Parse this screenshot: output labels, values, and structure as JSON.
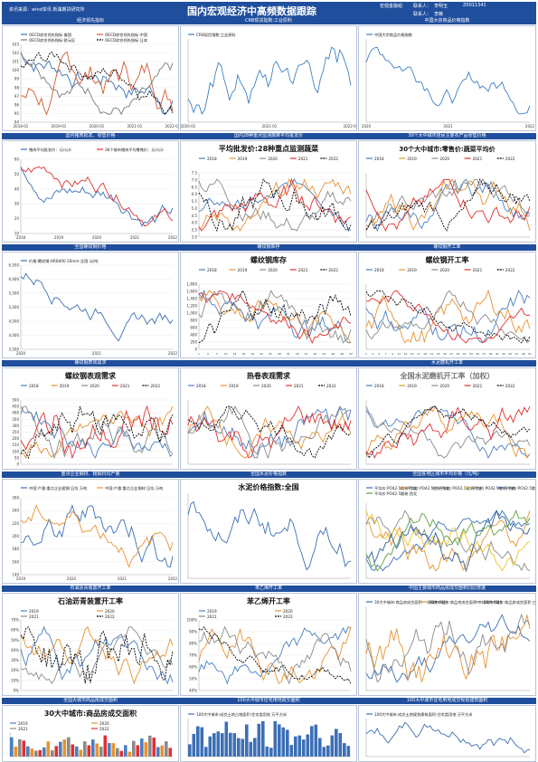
{
  "header": {
    "title": "国内宏观经济中高频数据跟踪",
    "source": "资讯来源：wind资讯 新湖期货研究所",
    "dept": "宏观金融组",
    "contact_label": "联系人：",
    "contact": "李明玉",
    "code": "Z0011341",
    "contact2_label": "联系人：",
    "contact2": "李薇"
  },
  "colors": {
    "band": "#1f4e9c",
    "y2018": "#4a7fc1",
    "y2019": "#e8922f",
    "y2020": "#8a8a8a",
    "y2021": "#e03030",
    "y2022": "#000000"
  },
  "rows": [
    {
      "titles": [
        "经济领先指标",
        "CRB现货指数:工业原料",
        "中国大宗商品价格指数"
      ]
    },
    {
      "titles": [
        "国内猪肉批发、零售价格",
        "国内28种重点监测蔬菜平均批发价",
        "30个大中城市居民主要农产品零售价格"
      ]
    },
    {
      "titles": [
        "全国螺纹钢价格",
        "螺纹钢库存",
        "螺纹钢开工率"
      ]
    },
    {
      "titles": [
        "螺纹钢表观需求",
        "",
        "水泥磨机开工率"
      ]
    },
    {
      "titles": [
        "重点企业钢材、粗钢日均产量",
        "全国水泥价格指数",
        "全国各地区城市平均价格（元/吨）"
      ]
    },
    {
      "titles": [
        "石油沥青装置开工率",
        "苯乙烯开工率",
        "中国主要城市商品房成交面积同比增速"
      ]
    },
    {
      "titles": [
        "全国大城市商品房成交面积",
        "100大中城市住宅用地成交面积",
        "100大中城市住宅用地成交规划建筑面积"
      ]
    }
  ],
  "charts": [
    {
      "id": "leading",
      "type": "line",
      "legend": [
        "OECD综合领先指标:美国",
        "OECD综合领先指标:中国",
        "OECD综合领先指标:欧元区",
        "OECD综合领先指标:日本"
      ],
      "yticks": [
        "103",
        "102",
        "101",
        "100",
        "99",
        "98",
        "97",
        "96",
        "95",
        "94"
      ],
      "xticks": [
        "2018-01",
        "2019-01",
        "2020-01",
        "2021-01",
        "2022-01"
      ],
      "series_colors": [
        "#3c6fb5",
        "#d9572b",
        "#7a7a7a",
        "#000000"
      ]
    },
    {
      "id": "crb",
      "type": "line",
      "legend": [
        "CRB现货指数:工业原料"
      ],
      "yticks": [],
      "xticks": [
        "2020-01",
        "2021-01",
        "2022-01"
      ],
      "series_colors": [
        "#3c80c0"
      ]
    },
    {
      "id": "cci",
      "type": "line",
      "legend": [
        "中国大宗商品价格指数"
      ],
      "yticks": [],
      "xticks": [
        "2020",
        "2021",
        "2022"
      ],
      "series_colors": [
        "#3c80c0"
      ]
    },
    {
      "id": "pork",
      "type": "line",
      "legend": [
        "猪肉平均批发价：元/公斤",
        "36个城市猪肉平均零售价：元/公斤"
      ],
      "yticks": [
        "60",
        "50",
        "40",
        "30",
        "20",
        "10"
      ],
      "xticks": [
        "2018",
        "2019",
        "2020",
        "2021",
        "2022"
      ],
      "series_colors": [
        "#3c6fb5",
        "#e03030"
      ]
    },
    {
      "id": "veg",
      "type": "line",
      "title": "平均批发价:28种重点监测蔬菜",
      "legend": [
        "2018",
        "2019",
        "2020",
        "2021",
        "2022"
      ],
      "yticks": [
        "7.5",
        "7.0",
        "6.5",
        "6.0",
        "5.5",
        "5.0",
        "4.5",
        "4.0",
        "3.5",
        "3.0"
      ],
      "xticks": [],
      "series_colors": [
        "#4a7fc1",
        "#e8922f",
        "#8a8a8a",
        "#e03030",
        "#000000"
      ]
    },
    {
      "id": "veg30",
      "type": "line",
      "title": "30个大中城市:零售价:蔬菜平均价",
      "legend": [
        "2018",
        "2019",
        "2020",
        "2021",
        "2022"
      ],
      "yticks": [],
      "xticks": [],
      "series_colors": [
        "#4a7fc1",
        "#e8922f",
        "#8a8a8a",
        "#e03030",
        "#000000"
      ]
    },
    {
      "id": "rebar_price",
      "type": "line",
      "legend": [
        "价格:螺纹钢:HRB400 20mm:全国  元/吨"
      ],
      "yticks": [
        "6,500",
        "6,000",
        "5,500",
        "5,000",
        "4,500",
        "4,000",
        "3,500"
      ],
      "xticks": [
        "2020",
        "2021",
        "2022"
      ],
      "series_colors": [
        "#3c6fb5"
      ]
    },
    {
      "id": "rebar_inv",
      "type": "line",
      "title": "螺纹钢库存",
      "legend": [
        "2018",
        "2019",
        "2020",
        "2021",
        "2022"
      ],
      "yticks": [
        "1,800",
        "1,600",
        "1,400",
        "1,200",
        "1,000",
        "800",
        "600",
        "400",
        "200",
        "0"
      ],
      "xticks": [
        "1",
        "4",
        "7",
        "10",
        "13",
        "16",
        "19",
        "22",
        "25",
        "28",
        "31",
        "34",
        "37",
        "40",
        "43",
        "46",
        "49",
        "52"
      ],
      "series_colors": [
        "#4a7fc1",
        "#e8922f",
        "#8a8a8a",
        "#e03030",
        "#000000"
      ]
    },
    {
      "id": "rebar_op",
      "type": "line",
      "title": "螺纹钢开工率",
      "legend": [
        "2018",
        "2019",
        "2020",
        "2021",
        "2022"
      ],
      "yticks": [],
      "xticks": [
        "1",
        "3",
        "5",
        "7",
        "9",
        "11",
        "13",
        "15",
        "17",
        "19",
        "21",
        "23",
        "25",
        "27",
        "29",
        "31",
        "33",
        "35",
        "37",
        "39",
        "41",
        "43",
        "45",
        "47",
        "49",
        "51"
      ],
      "series_colors": [
        "#4a7fc1",
        "#e8922f",
        "#8a8a8a",
        "#e03030",
        "#000000"
      ]
    },
    {
      "id": "rebar_dem",
      "type": "line",
      "title": "螺纹钢表观需求",
      "legend": [
        "2018",
        "2019",
        "2020",
        "2021",
        "2022"
      ],
      "yticks": [
        "500",
        "450",
        "400",
        "350",
        "300",
        "250",
        "200",
        "150",
        "100",
        "50",
        "0"
      ],
      "xticks": [],
      "series_colors": [
        "#4a7fc1",
        "#e8922f",
        "#8a8a8a",
        "#e03030",
        "#000000"
      ]
    },
    {
      "id": "hrc_dem",
      "type": "line",
      "title": "热卷表观需求",
      "legend": [
        "2018",
        "2019",
        "2020",
        "2021",
        "2022"
      ],
      "yticks": [],
      "xticks": [],
      "series_colors": [
        "#4a7fc1",
        "#e8922f",
        "#8a8a8a",
        "#e03030",
        "#000000"
      ]
    },
    {
      "id": "cement_op",
      "type": "line",
      "title": "全国水泥磨机开工率（加权）",
      "legend": [
        "2018",
        "2019",
        "2020",
        "2021",
        "2022"
      ],
      "yticks": [],
      "xticks": [],
      "series_colors": [
        "#4a7fc1",
        "#e8922f",
        "#8a8a8a",
        "#e03030",
        "#000000"
      ]
    },
    {
      "id": "steel_out",
      "type": "line",
      "legend": [
        "中国:产量:重点企业粗钢:日均  万吨",
        "中国:产量:重点企业钢材:日均  万吨"
      ],
      "yticks": [
        "260",
        "240",
        "220",
        "200",
        "180",
        "160",
        "140"
      ],
      "xticks": [
        "2019",
        "2020",
        "2021",
        "2022"
      ],
      "series_colors": [
        "#3c6fb5",
        "#e8922f"
      ]
    },
    {
      "id": "cement_price",
      "type": "line",
      "title": "水泥价格指数:全国",
      "legend": [],
      "yticks": [],
      "xticks": [],
      "series_colors": [
        "#3c6fb5"
      ]
    },
    {
      "id": "regional",
      "type": "line",
      "legend": [
        "平均价:PO42.5散装:华北",
        "平均价:PO42.5散装:东北",
        "平均价:PO42.5散装:华东",
        "平均价:PO42.5散装:中南",
        "平均价:PO42.5散装:西南",
        "平均价:PO42.5散装:西北"
      ],
      "yticks": [],
      "xticks": [],
      "series_colors": [
        "#3c6fb5",
        "#e8922f",
        "#8a8a8a",
        "#e8c22f",
        "#2b5fa0",
        "#60a040"
      ]
    },
    {
      "id": "asphalt",
      "type": "line",
      "title": "石油沥青装置开工率",
      "legend": [
        "2019",
        "2020",
        "2021",
        "2022"
      ],
      "yticks": [
        "70%",
        "60%",
        "50%",
        "40%",
        "30%",
        "20%",
        "10%",
        "0%"
      ],
      "xticks": [],
      "series_colors": [
        "#4a7fc1",
        "#e8922f",
        "#8a8a8a",
        "#000000"
      ]
    },
    {
      "id": "styrene",
      "type": "line",
      "title": "苯乙烯开工率",
      "legend": [
        "2019",
        "2020",
        "2021",
        "2022"
      ],
      "yticks": [
        "100%",
        "90%",
        "80%",
        "70%",
        "60%",
        "50%",
        "40%"
      ],
      "xticks": [],
      "series_colors": [
        "#4a7fc1",
        "#e8922f",
        "#8a8a8a",
        "#000000"
      ]
    },
    {
      "id": "housing_yoy",
      "type": "line",
      "legend": [
        "30大中城市:商品房成交面积:一线城市:同比",
        "30大中城市:商品房成交面积:二线城市:同比",
        "30大中城市:商品房成交面积:三线城市:同比"
      ],
      "yticks": [],
      "xticks": [],
      "series_colors": [
        "#3c6fb5",
        "#e8922f",
        "#8a8a8a"
      ]
    },
    {
      "id": "housing_area",
      "type": "bar",
      "title": "30大中城市:商品房成交面积",
      "legend": [
        "2019",
        "2020",
        "2021",
        "2022"
      ],
      "yticks": [],
      "xticks": [],
      "series_colors": [
        "#4a7fc1",
        "#e8922f",
        "#8a8a8a",
        "#e03030"
      ]
    },
    {
      "id": "land_area",
      "type": "bar",
      "legend": [
        "100大中城市:成交土地占地面积:住宅类用地 万平方米"
      ],
      "yticks": [],
      "xticks": [],
      "series_colors": [
        "#3c6fb5"
      ]
    },
    {
      "id": "land_plan",
      "type": "line",
      "legend": [
        "100大中城市:成交土地规划建筑面积:住宅类用地 万平方米"
      ],
      "yticks": [],
      "xticks": [],
      "series_colors": [
        "#3c6fb5"
      ]
    }
  ]
}
